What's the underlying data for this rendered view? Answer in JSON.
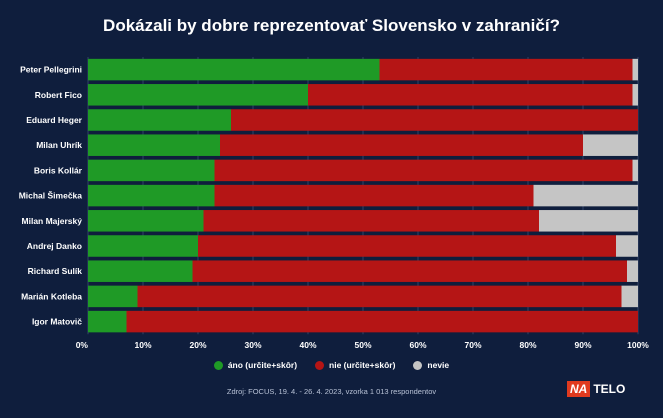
{
  "chart_data": {
    "type": "bar",
    "orientation": "horizontal",
    "stacked": true,
    "title": "Dokázali by dobre reprezentovať Slovensko v zahraničí?",
    "categories": [
      "Peter Pellegrini",
      "Robert Fico",
      "Eduard Heger",
      "Milan Uhrík",
      "Boris Kollár",
      "Michal Šimečka",
      "Milan Majerský",
      "Andrej Danko",
      "Richard Sulík",
      "Marián Kotleba",
      "Igor Matovič"
    ],
    "series": [
      {
        "name": "áno (určite+skôr)",
        "color": "#1f9a26",
        "values": [
          53,
          40,
          26,
          24,
          23,
          23,
          21,
          20,
          19,
          9,
          7
        ]
      },
      {
        "name": "nie (určite+skôr)",
        "color": "#b51515",
        "values": [
          46,
          59,
          74,
          66,
          76,
          58,
          61,
          76,
          79,
          88,
          93
        ]
      },
      {
        "name": "nevie",
        "color": "#c5c5c5",
        "values": [
          1,
          1,
          0,
          10,
          1,
          19,
          18,
          4,
          2,
          3,
          0
        ]
      }
    ],
    "xlim": [
      0,
      100
    ],
    "xticks": [
      "0%",
      "10%",
      "20%",
      "30%",
      "40%",
      "50%",
      "60%",
      "70%",
      "80%",
      "90%",
      "100%"
    ],
    "legend_position": "bottom",
    "grid": true
  },
  "source": "Zdroj: FOCUS, 19. 4. - 26. 4. 2023, vzorka 1 013 respondentov",
  "logo": {
    "part1": "NA",
    "part2": "TELO"
  }
}
